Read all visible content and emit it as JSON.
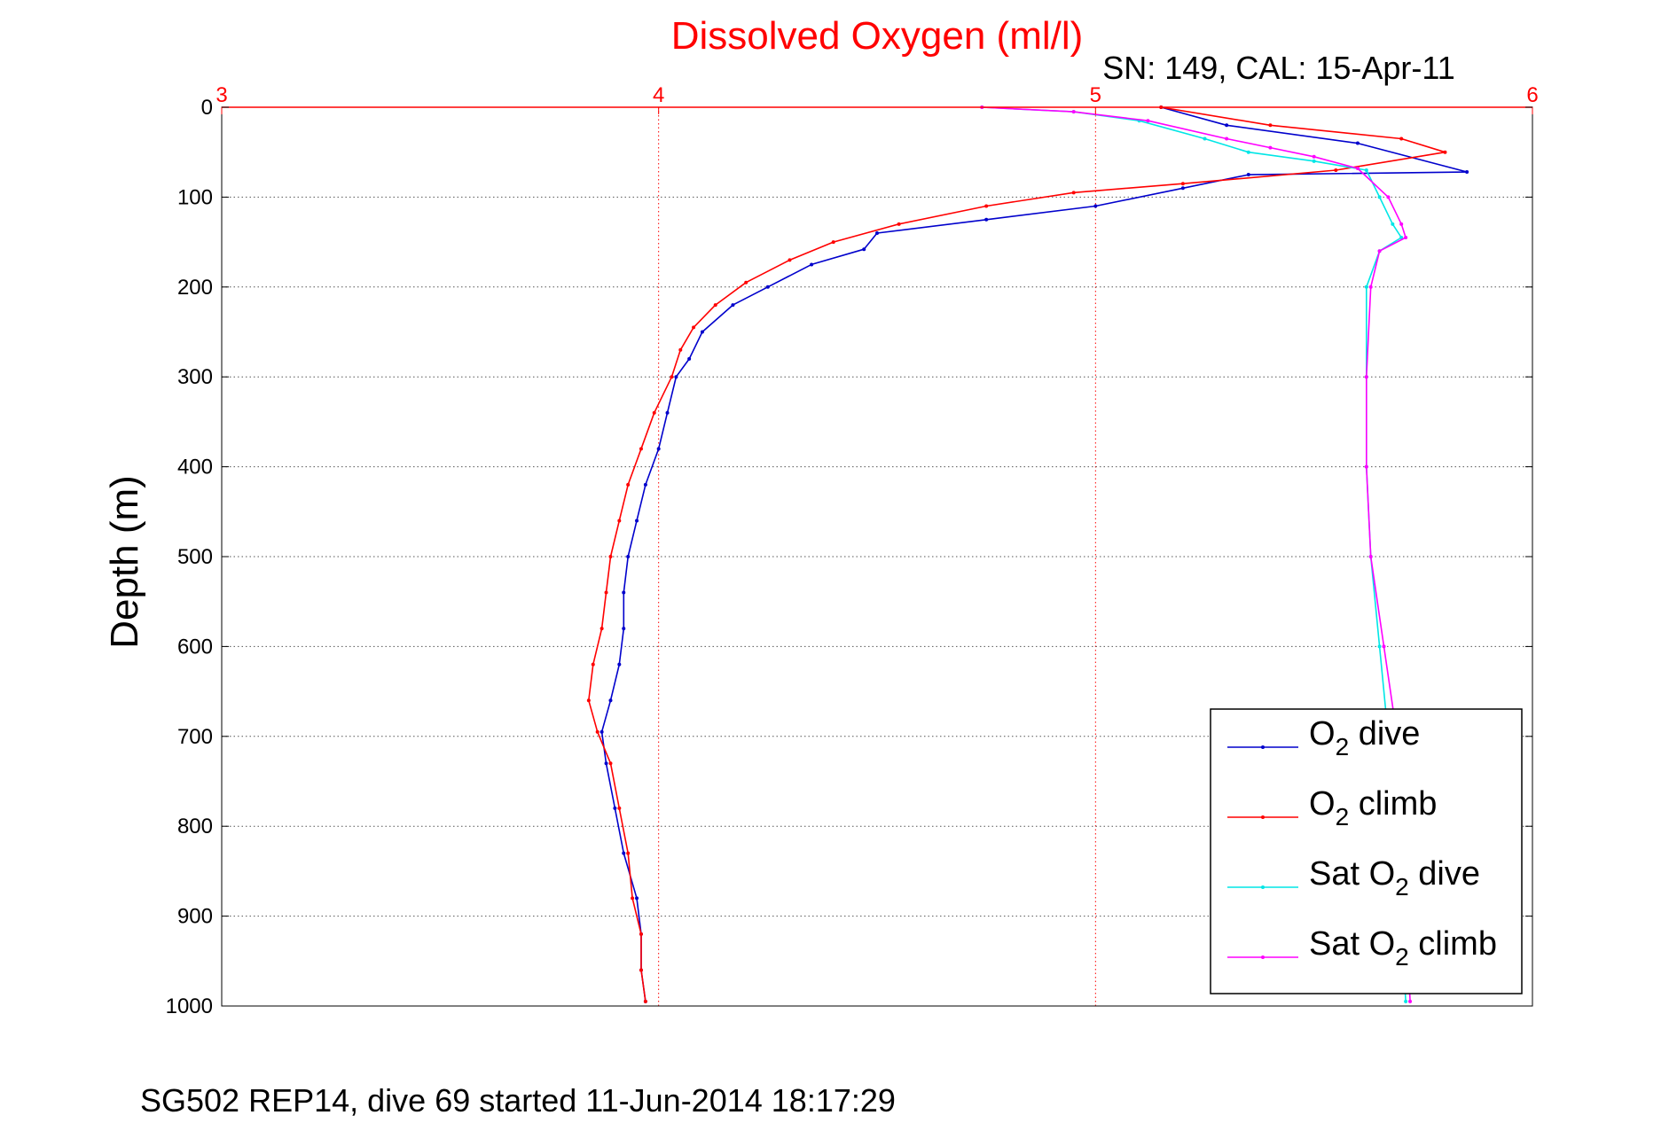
{
  "chart_data": {
    "type": "line",
    "title": "Dissolved Oxygen (ml/l)",
    "subtitle": "SN: 149, CAL: 15-Apr-11",
    "footer": "SG502 REP14, dive 69 started 11-Jun-2014 18:17:29",
    "xlabel": "Dissolved Oxygen (ml/l)",
    "ylabel": "Depth (m)",
    "xlim": [
      3,
      6
    ],
    "ylim": [
      0,
      1000
    ],
    "y_reversed": true,
    "x_axis_position": "top",
    "xticks": [
      "3",
      "4",
      "5",
      "6"
    ],
    "yticks": [
      "0",
      "100",
      "200",
      "300",
      "400",
      "500",
      "600",
      "700",
      "800",
      "900",
      "1000"
    ],
    "grid": true,
    "legend_position": "bottom-right",
    "colors": {
      "title": "#ff0000",
      "x_axis": "#ff0000",
      "grid": "#555555"
    },
    "series": [
      {
        "name": "O2 dive",
        "legend_base": "O",
        "legend_sub": "2",
        "legend_suffix": " dive",
        "color": "#0000cc",
        "points": [
          [
            5.15,
            0
          ],
          [
            5.3,
            20
          ],
          [
            5.6,
            40
          ],
          [
            5.85,
            72
          ],
          [
            5.35,
            75
          ],
          [
            5.2,
            90
          ],
          [
            5.0,
            110
          ],
          [
            4.75,
            125
          ],
          [
            4.5,
            140
          ],
          [
            4.47,
            158
          ],
          [
            4.35,
            175
          ],
          [
            4.25,
            200
          ],
          [
            4.17,
            220
          ],
          [
            4.1,
            250
          ],
          [
            4.07,
            280
          ],
          [
            4.04,
            300
          ],
          [
            4.02,
            340
          ],
          [
            4.0,
            380
          ],
          [
            3.97,
            420
          ],
          [
            3.95,
            460
          ],
          [
            3.93,
            500
          ],
          [
            3.92,
            540
          ],
          [
            3.92,
            580
          ],
          [
            3.91,
            620
          ],
          [
            3.89,
            660
          ],
          [
            3.87,
            695
          ],
          [
            3.88,
            730
          ],
          [
            3.9,
            780
          ],
          [
            3.92,
            830
          ],
          [
            3.95,
            880
          ],
          [
            3.96,
            920
          ],
          [
            3.96,
            960
          ],
          [
            3.97,
            995
          ]
        ]
      },
      {
        "name": "O2 climb",
        "legend_base": "O",
        "legend_sub": "2",
        "legend_suffix": " climb",
        "color": "#ff0000",
        "points": [
          [
            5.15,
            0
          ],
          [
            5.4,
            20
          ],
          [
            5.7,
            35
          ],
          [
            5.8,
            50
          ],
          [
            5.55,
            70
          ],
          [
            5.2,
            85
          ],
          [
            4.95,
            95
          ],
          [
            4.75,
            110
          ],
          [
            4.55,
            130
          ],
          [
            4.4,
            150
          ],
          [
            4.3,
            170
          ],
          [
            4.2,
            195
          ],
          [
            4.13,
            220
          ],
          [
            4.08,
            245
          ],
          [
            4.05,
            270
          ],
          [
            4.03,
            300
          ],
          [
            3.99,
            340
          ],
          [
            3.96,
            380
          ],
          [
            3.93,
            420
          ],
          [
            3.91,
            460
          ],
          [
            3.89,
            500
          ],
          [
            3.88,
            540
          ],
          [
            3.87,
            580
          ],
          [
            3.85,
            620
          ],
          [
            3.84,
            660
          ],
          [
            3.86,
            695
          ],
          [
            3.89,
            730
          ],
          [
            3.91,
            780
          ],
          [
            3.93,
            830
          ],
          [
            3.94,
            880
          ],
          [
            3.96,
            920
          ],
          [
            3.96,
            960
          ],
          [
            3.97,
            995
          ]
        ]
      },
      {
        "name": "Sat O2 dive",
        "legend_base": "Sat O",
        "legend_sub": "2",
        "legend_suffix": " dive",
        "color": "#00e6e6",
        "points": [
          [
            4.74,
            0
          ],
          [
            4.95,
            5
          ],
          [
            5.1,
            15
          ],
          [
            5.25,
            35
          ],
          [
            5.35,
            50
          ],
          [
            5.5,
            60
          ],
          [
            5.62,
            70
          ],
          [
            5.65,
            100
          ],
          [
            5.68,
            130
          ],
          [
            5.7,
            145
          ],
          [
            5.65,
            160
          ],
          [
            5.62,
            200
          ],
          [
            5.62,
            300
          ],
          [
            5.62,
            400
          ],
          [
            5.63,
            500
          ],
          [
            5.65,
            600
          ],
          [
            5.67,
            700
          ],
          [
            5.69,
            800
          ],
          [
            5.7,
            900
          ],
          [
            5.71,
            995
          ]
        ]
      },
      {
        "name": "Sat O2 climb",
        "legend_base": "Sat O",
        "legend_sub": "2",
        "legend_suffix": " climb",
        "color": "#ff00ff",
        "points": [
          [
            4.74,
            0
          ],
          [
            4.95,
            5
          ],
          [
            5.12,
            15
          ],
          [
            5.3,
            35
          ],
          [
            5.4,
            45
          ],
          [
            5.5,
            55
          ],
          [
            5.6,
            68
          ],
          [
            5.67,
            100
          ],
          [
            5.7,
            130
          ],
          [
            5.71,
            145
          ],
          [
            5.65,
            160
          ],
          [
            5.63,
            200
          ],
          [
            5.62,
            300
          ],
          [
            5.62,
            400
          ],
          [
            5.63,
            500
          ],
          [
            5.66,
            600
          ],
          [
            5.69,
            700
          ],
          [
            5.7,
            800
          ],
          [
            5.71,
            900
          ],
          [
            5.72,
            995
          ]
        ]
      }
    ]
  }
}
